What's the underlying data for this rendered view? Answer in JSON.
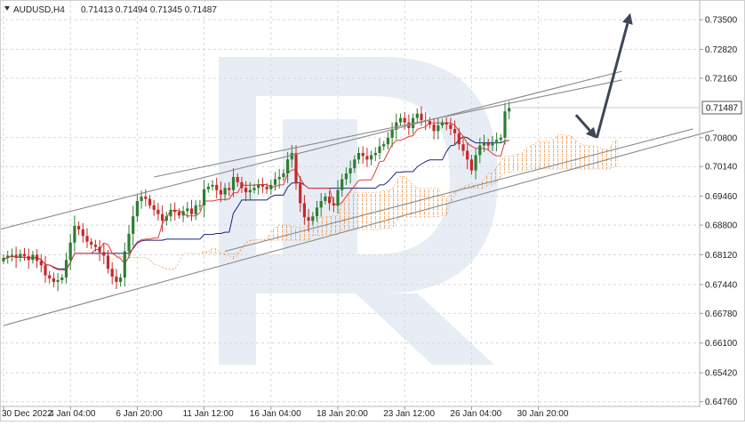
{
  "chart_data": {
    "type": "candlestick",
    "symbol": "AUDUSD,H4",
    "ohlc_label": "0.71413 0.71494 0.71345 0.71487",
    "current_price": 0.71487,
    "current_price_label": "0.71487",
    "ylim": [
      0.6465,
      0.7395
    ],
    "y_ticks": [
      {
        "value": 0.735,
        "label": "0.73500"
      },
      {
        "value": 0.7282,
        "label": "0.72820"
      },
      {
        "value": 0.7216,
        "label": "0.72160"
      },
      {
        "value": 0.708,
        "label": "0.70800"
      },
      {
        "value": 0.7014,
        "label": "0.70140"
      },
      {
        "value": 0.6946,
        "label": "0.69460"
      },
      {
        "value": 0.688,
        "label": "0.68800"
      },
      {
        "value": 0.6812,
        "label": "0.68120"
      },
      {
        "value": 0.6744,
        "label": "0.67440"
      },
      {
        "value": 0.6678,
        "label": "0.66780"
      },
      {
        "value": 0.661,
        "label": "0.66100"
      },
      {
        "value": 0.6542,
        "label": "0.65420"
      },
      {
        "value": 0.6476,
        "label": "0.64760"
      }
    ],
    "x_ticks": [
      {
        "index": 0,
        "label": "30 Dec 2022"
      },
      {
        "index": 16,
        "label": "4 Jan 04:00"
      },
      {
        "index": 32,
        "label": "6 Jan 20:00"
      },
      {
        "index": 48,
        "label": "11 Jan 12:00"
      },
      {
        "index": 64,
        "label": "16 Jan 04:00"
      },
      {
        "index": 80,
        "label": "18 Jan 20:00"
      },
      {
        "index": 96,
        "label": "23 Jan 12:00"
      },
      {
        "index": 112,
        "label": "26 Jan 04:00"
      },
      {
        "index": 128,
        "label": "30 Jan 20:00"
      }
    ],
    "grid": true,
    "close_series": [
      0.6805,
      0.681,
      0.6812,
      0.6806,
      0.6814,
      0.6809,
      0.68,
      0.6812,
      0.6798,
      0.6788,
      0.6765,
      0.6758,
      0.675,
      0.6754,
      0.676,
      0.68,
      0.684,
      0.6878,
      0.687,
      0.6855,
      0.6842,
      0.6835,
      0.683,
      0.6818,
      0.681,
      0.678,
      0.6762,
      0.675,
      0.676,
      0.682,
      0.686,
      0.69,
      0.6935,
      0.6945,
      0.694,
      0.6925,
      0.6915,
      0.6905,
      0.689,
      0.69,
      0.6915,
      0.691,
      0.6902,
      0.6912,
      0.6918,
      0.6905,
      0.6925,
      0.6925,
      0.6962,
      0.6968,
      0.6972,
      0.696,
      0.695,
      0.6965,
      0.696,
      0.699,
      0.6978,
      0.6965,
      0.6955,
      0.696,
      0.6965,
      0.6972,
      0.6968,
      0.6962,
      0.6972,
      0.6985,
      0.699,
      0.6998,
      0.703,
      0.7045,
      0.6975,
      0.693,
      0.6898,
      0.689,
      0.69,
      0.692,
      0.6935,
      0.6945,
      0.693,
      0.6925,
      0.696,
      0.6985,
      0.6998,
      0.701,
      0.703,
      0.7045,
      0.7038,
      0.703,
      0.704,
      0.7045,
      0.706,
      0.7065,
      0.708,
      0.7098,
      0.7115,
      0.7125,
      0.7115,
      0.7102,
      0.7125,
      0.7135,
      0.712,
      0.7118,
      0.711,
      0.7095,
      0.7108,
      0.7115,
      0.711,
      0.71,
      0.709,
      0.7065,
      0.705,
      0.703,
      0.7005,
      0.704,
      0.7062,
      0.7068,
      0.7062,
      0.707,
      0.7075,
      0.708,
      0.714,
      0.7148
    ],
    "trend_lines": [
      {
        "name": "channel-upper-outer",
        "points": [
          [
            -1,
            0.687
          ],
          [
            148,
            0.7232
          ]
        ]
      },
      {
        "name": "channel-upper-inner",
        "points": [
          [
            36,
            0.699
          ],
          [
            148,
            0.7212
          ]
        ]
      },
      {
        "name": "channel-lower-inner",
        "points": [
          [
            53,
            0.682
          ],
          [
            165,
            0.71
          ]
        ]
      },
      {
        "name": "channel-lower-outer",
        "points": [
          [
            0,
            0.665
          ],
          [
            170,
            0.7097
          ]
        ]
      }
    ],
    "forecast_arrows": [
      {
        "name": "pullback-arrow",
        "points": [
          [
            137,
            0.7132
          ],
          [
            142,
            0.7078
          ]
        ]
      },
      {
        "name": "rise-arrow",
        "points": [
          [
            142,
            0.708
          ],
          [
            150,
            0.7365
          ]
        ]
      }
    ],
    "colors": {
      "bull": "#2e7d32",
      "bear": "#c62828",
      "tenkan": "#e53935",
      "kijun": "#1a237e",
      "cloud": "#ef8c33",
      "channel": "#8a8a8a",
      "arrow": "#3c4758",
      "grid": "#d9d9d9",
      "price_box": "#ffffff"
    }
  }
}
